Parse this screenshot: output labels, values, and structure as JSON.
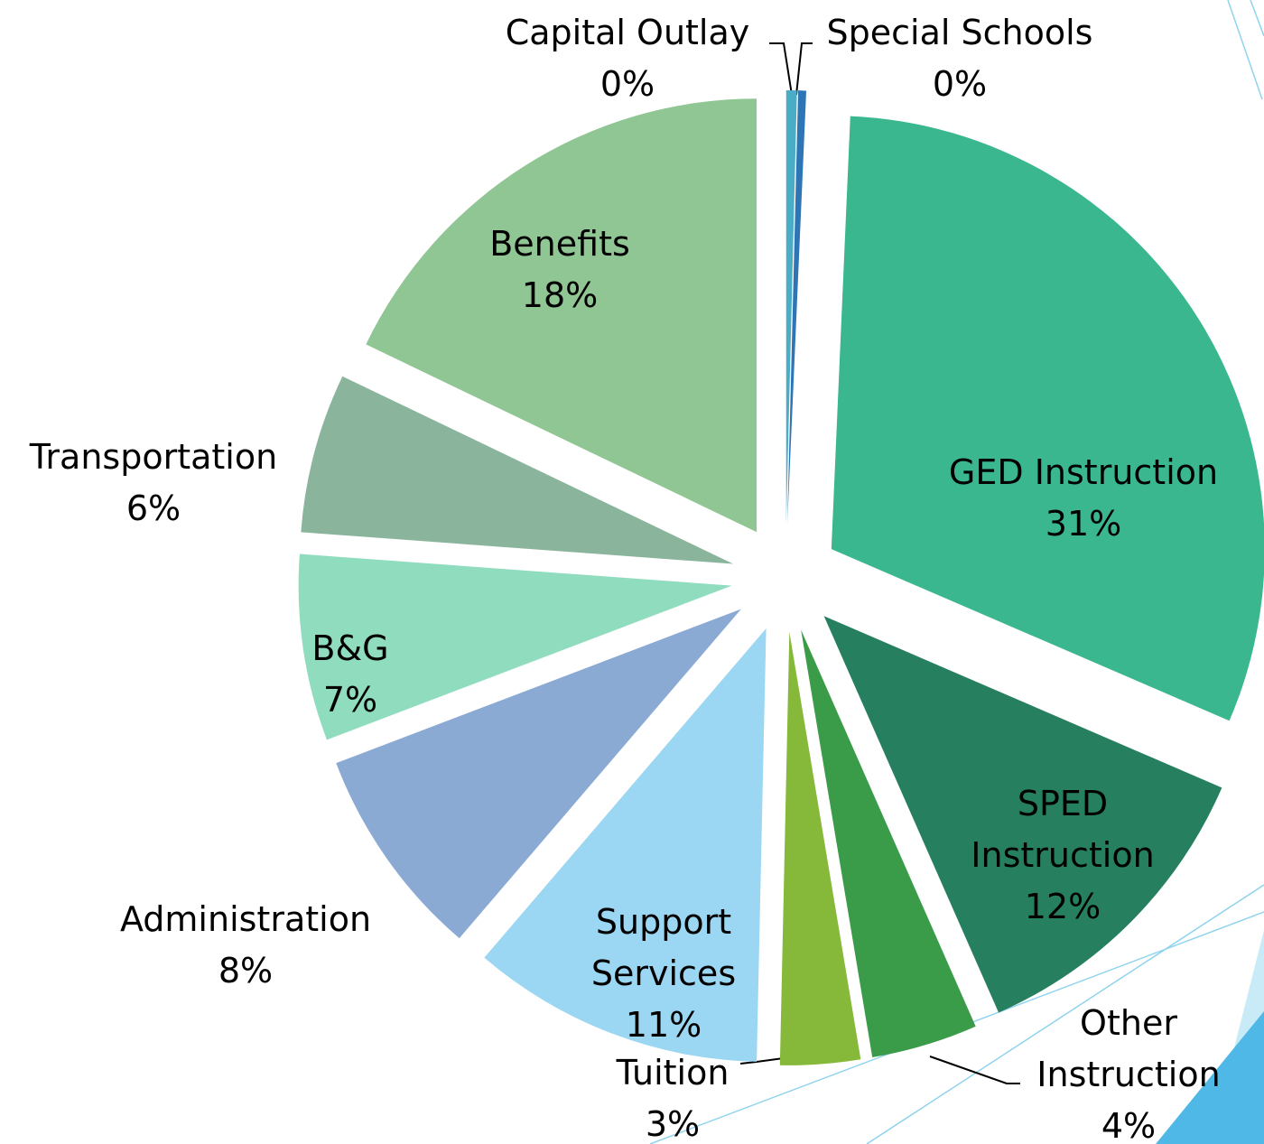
{
  "chart_data": {
    "type": "pie",
    "categories": [
      "Capital Outlay",
      "Special Schools",
      "GED Instruction",
      "SPED Instruction",
      "Other Instruction",
      "Tuition",
      "Support Services",
      "Administration",
      "B&G",
      "Transportation",
      "Benefits"
    ],
    "values": [
      0.4,
      0.3,
      31,
      12,
      4,
      3,
      11,
      8,
      7,
      6,
      18
    ],
    "value_labels": [
      "0%",
      "0%",
      "31%",
      "12%",
      "4%",
      "3%",
      "11%",
      "8%",
      "7%",
      "6%",
      "18%"
    ],
    "colors": [
      "#4bacc6",
      "#2e75b6",
      "#3bb78f",
      "#268060",
      "#3a9c48",
      "#86b83a",
      "#9bd6f2",
      "#8aaad3",
      "#8fdcbe",
      "#8ab59c",
      "#90c693"
    ]
  }
}
